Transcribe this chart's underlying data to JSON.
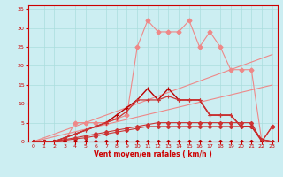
{
  "xlabel": "Vent moyen/en rafales ( km/h )",
  "background_color": "#cceef2",
  "grid_color": "#aadddd",
  "x_values": [
    0,
    1,
    2,
    3,
    4,
    5,
    6,
    7,
    8,
    9,
    10,
    11,
    12,
    13,
    14,
    15,
    16,
    17,
    18,
    19,
    20,
    21,
    22,
    23
  ],
  "line_top_y": [
    0,
    0,
    0,
    0,
    5,
    5,
    5,
    5,
    6,
    7,
    25,
    32,
    29,
    29,
    29,
    32,
    25,
    29,
    25,
    19,
    19,
    19,
    0,
    4
  ],
  "line_mid1_y": [
    0,
    0,
    0,
    1,
    2,
    3,
    4,
    5,
    7,
    9,
    11,
    14,
    11,
    14,
    11,
    11,
    11,
    7,
    7,
    7,
    4,
    4,
    0.5,
    0
  ],
  "line_mid2_y": [
    0,
    0,
    0,
    1,
    2,
    3,
    4,
    5,
    6,
    8,
    11,
    11,
    11,
    12,
    11,
    11,
    11,
    7,
    7,
    7,
    4,
    4,
    0.5,
    0
  ],
  "line_diag1_y": [
    0,
    1,
    2,
    3,
    4,
    5,
    6,
    7,
    8,
    9,
    10,
    11,
    12,
    13,
    14,
    15,
    16,
    17,
    18,
    19,
    20,
    21,
    22,
    23
  ],
  "line_diag2_y": [
    0,
    0.65,
    1.3,
    1.95,
    2.6,
    3.25,
    3.9,
    4.55,
    5.2,
    5.85,
    6.5,
    7.15,
    7.8,
    8.45,
    9.1,
    9.75,
    10.4,
    11.05,
    11.7,
    12.35,
    13,
    13.65,
    14.3,
    14.95
  ],
  "line_low1_y": [
    0,
    0,
    0,
    0.5,
    1,
    1.5,
    2,
    2.5,
    3,
    3.5,
    4,
    4.5,
    5,
    5,
    5,
    5,
    5,
    5,
    5,
    5,
    5,
    5,
    0,
    4
  ],
  "line_low2_y": [
    0,
    0,
    0,
    0.3,
    0.7,
    1,
    1.5,
    2,
    2.5,
    3,
    3.5,
    4,
    4,
    4,
    4,
    4,
    4,
    4,
    4,
    4,
    4,
    4,
    0,
    4
  ],
  "line_zero_y": [
    0,
    0,
    0,
    0,
    0,
    0,
    0,
    0,
    0,
    0,
    0,
    0,
    0,
    0,
    0,
    0,
    0,
    0,
    0,
    0,
    0,
    0,
    0,
    0
  ],
  "color_dark": "#bb0000",
  "color_mid": "#cc3333",
  "color_light": "#ee8888",
  "color_vlight": "#ffaaaa",
  "axis_color": "#cc0000",
  "spine_color": "#cc0000"
}
